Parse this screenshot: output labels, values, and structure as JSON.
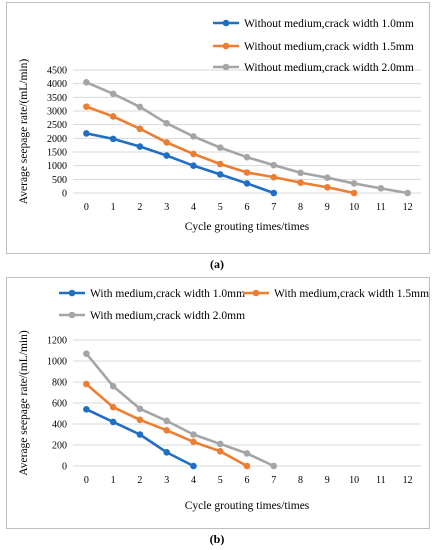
{
  "chart_data": [
    {
      "type": "line",
      "caption": "(a)",
      "xlabel": "Cycle grouting times/times",
      "ylabel": "Average seepage rate/(mL/min)",
      "x_ticks": [
        "0",
        "1",
        "2",
        "3",
        "4",
        "5",
        "6",
        "7",
        "8",
        "9",
        "10",
        "11",
        "12"
      ],
      "y_ticks": [
        "0",
        "500",
        "1000",
        "1500",
        "2000",
        "2500",
        "3000",
        "3500",
        "4000",
        "4500"
      ],
      "ylim": [
        0,
        4500
      ],
      "grid": "horizontal",
      "legend_position": "top-right",
      "series": [
        {
          "name": "Without medium,crack width 1.0mm",
          "color": "#1f6fc5",
          "x": [
            0,
            1,
            2,
            3,
            4,
            5,
            6,
            7
          ],
          "values": [
            2180,
            1980,
            1700,
            1370,
            1000,
            680,
            350,
            0
          ]
        },
        {
          "name": "Without medium,crack width 1.5mm",
          "color": "#ed7d31",
          "x": [
            0,
            1,
            2,
            3,
            4,
            5,
            6,
            7,
            8,
            9,
            10
          ],
          "values": [
            3160,
            2800,
            2350,
            1850,
            1430,
            1060,
            750,
            580,
            380,
            210,
            0
          ]
        },
        {
          "name": "Without medium,crack width 2.0mm",
          "color": "#a5a5a5",
          "x": [
            0,
            1,
            2,
            3,
            4,
            5,
            6,
            7,
            8,
            9,
            10,
            11,
            12
          ],
          "values": [
            4050,
            3630,
            3150,
            2550,
            2070,
            1660,
            1310,
            1020,
            740,
            560,
            350,
            170,
            0
          ]
        }
      ]
    },
    {
      "type": "line",
      "caption": "(b)",
      "xlabel": "Cycle grouting times/times",
      "ylabel": "Average seepage rate/(mL/min)",
      "x_ticks": [
        "0",
        "1",
        "2",
        "3",
        "4",
        "5",
        "6",
        "7",
        "8",
        "9",
        "10",
        "11",
        "12"
      ],
      "y_ticks": [
        "0",
        "200",
        "400",
        "600",
        "800",
        "1000",
        "1200"
      ],
      "ylim": [
        0,
        1200
      ],
      "grid": "horizontal",
      "legend_position": "top",
      "series": [
        {
          "name": "With medium,crack width 1.0mm",
          "color": "#1f6fc5",
          "x": [
            0,
            1,
            2,
            3,
            4
          ],
          "values": [
            540,
            420,
            300,
            130,
            0
          ]
        },
        {
          "name": "With medium,crack width 1.5mm",
          "color": "#ed7d31",
          "x": [
            0,
            1,
            2,
            3,
            4,
            5,
            6
          ],
          "values": [
            780,
            560,
            440,
            340,
            230,
            140,
            0
          ]
        },
        {
          "name": "With medium,crack width 2.0mm",
          "color": "#a5a5a5",
          "x": [
            0,
            1,
            2,
            3,
            4,
            5,
            6,
            7
          ],
          "values": [
            1070,
            760,
            545,
            430,
            300,
            210,
            120,
            0
          ]
        }
      ]
    }
  ]
}
